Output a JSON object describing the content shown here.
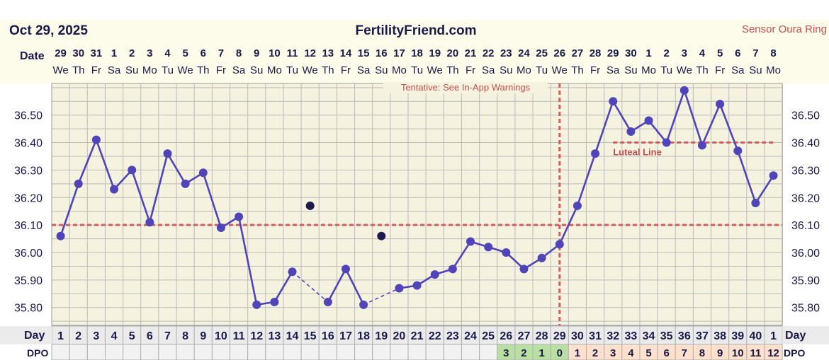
{
  "header": {
    "date": "Oct 29, 2025",
    "site": "FertilityFriend.com",
    "sensor": "Sensor Oura Ring"
  },
  "labels": {
    "date_row": "Date",
    "day_row": "Day",
    "dpo_row": "DPO",
    "tentative": "Tentative: See In-App Warnings",
    "luteal": "Luteal Line"
  },
  "colors": {
    "header_bg": "#fdfbe9",
    "plot_bg": "#f5f2e0",
    "grid": "#bcbcbc",
    "line": "#5045b8",
    "coverline": "#d06060",
    "dark_dot": "#1f1a4d",
    "day_bg": "#ebebeb",
    "dpo_pre": "#f2f2f2",
    "dpo_green": "#b9dfa3",
    "dpo_peach": "#fde1cc",
    "text": "#1a1a4a",
    "red_text": "#c05050"
  },
  "chart_data": {
    "type": "line",
    "dates": [
      "29",
      "30",
      "31",
      "1",
      "2",
      "3",
      "4",
      "5",
      "6",
      "7",
      "8",
      "9",
      "10",
      "11",
      "12",
      "13",
      "14",
      "15",
      "16",
      "17",
      "18",
      "19",
      "20",
      "21",
      "22",
      "23",
      "24",
      "25",
      "26",
      "27",
      "28",
      "29",
      "30",
      "1",
      "2",
      "3",
      "4",
      "5",
      "6",
      "7",
      "8"
    ],
    "weekdays": [
      "We",
      "Th",
      "Fr",
      "Sa",
      "Su",
      "Mo",
      "Tu",
      "We",
      "Th",
      "Fr",
      "Sa",
      "Su",
      "Mo",
      "Tu",
      "We",
      "Th",
      "Fr",
      "Sa",
      "Su",
      "Mo",
      "Tu",
      "We",
      "Th",
      "Fr",
      "Sa",
      "Su",
      "Mo",
      "Tu",
      "We",
      "Th",
      "Fr",
      "Sa",
      "Su",
      "Mo",
      "Tu",
      "We",
      "Th",
      "Fr",
      "Sa",
      "Su",
      "Mo"
    ],
    "cycle_days": [
      "1",
      "2",
      "3",
      "4",
      "5",
      "6",
      "7",
      "8",
      "9",
      "10",
      "11",
      "12",
      "13",
      "14",
      "15",
      "16",
      "17",
      "18",
      "19",
      "20",
      "21",
      "22",
      "23",
      "24",
      "25",
      "26",
      "27",
      "28",
      "29",
      "30",
      "31",
      "32",
      "33",
      "34",
      "35",
      "36",
      "37",
      "38",
      "39",
      "40",
      "1"
    ],
    "dpo": [
      "",
      "",
      "",
      "",
      "",
      "",
      "",
      "",
      "",
      "",
      "",
      "",
      "",
      "",
      "",
      "",
      "",
      "",
      "",
      "",
      "",
      "",
      "",
      "",
      "",
      "3",
      "2",
      "1",
      "0",
      "1",
      "2",
      "3",
      "4",
      "5",
      "6",
      "7",
      "8",
      "9",
      "10",
      "11",
      "12"
    ],
    "temps": [
      36.06,
      36.25,
      36.41,
      36.23,
      36.3,
      36.11,
      36.36,
      36.25,
      36.29,
      36.09,
      36.13,
      35.81,
      35.82,
      35.93,
      null,
      35.82,
      35.94,
      35.81,
      null,
      35.87,
      35.88,
      35.92,
      35.94,
      36.04,
      36.02,
      36.0,
      35.94,
      35.98,
      36.03,
      36.17,
      36.36,
      36.55,
      36.44,
      36.48,
      36.4,
      36.59,
      36.39,
      36.54,
      36.37,
      36.18,
      36.28
    ],
    "excluded": [
      {
        "day_index": 14,
        "value": 36.17
      },
      {
        "day_index": 18,
        "value": 36.06
      }
    ],
    "dashed_segments": [
      [
        13,
        15
      ],
      [
        17,
        19
      ]
    ],
    "coverline": 36.1,
    "luteal_line": {
      "value": 36.4,
      "from_index": 31,
      "to_index": 40
    },
    "ovulation_index": 28,
    "y_ticks": [
      "36.50",
      "36.40",
      "36.30",
      "36.20",
      "36.10",
      "36.00",
      "35.90",
      "35.80"
    ],
    "ylim": [
      35.735,
      36.615
    ],
    "grid": true
  }
}
